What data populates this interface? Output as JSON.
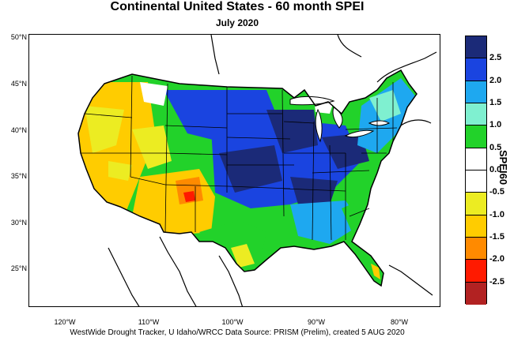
{
  "title": "Continental United States - 60 month SPEI",
  "subtitle": "July 2020",
  "credit": "WestWide Drought Tracker, U Idaho/WRCC Data Source: PRISM (Prelim), created  5 AUG 2020",
  "latitude_labels": [
    "50°N",
    "45°N",
    "40°N",
    "35°N",
    "30°N",
    "25°N"
  ],
  "longitude_labels": [
    "120°W",
    "110°W",
    "100°W",
    "90°W",
    "80°W"
  ],
  "colorbar": {
    "label": "SPEI60",
    "ticks": [
      "2.5",
      "2.0",
      "1.5",
      "1.0",
      "0.5",
      "0.0",
      "-0.5",
      "-1.0",
      "-1.5",
      "-2.0",
      "-2.5"
    ],
    "colors": [
      "#1b2a78",
      "#1a44e0",
      "#1ea8f0",
      "#7ff0d0",
      "#22d22a",
      "#ffffff",
      "#ffffff",
      "#ecec22",
      "#ffcc00",
      "#ff8a00",
      "#ff1a00",
      "#b22222"
    ]
  }
}
